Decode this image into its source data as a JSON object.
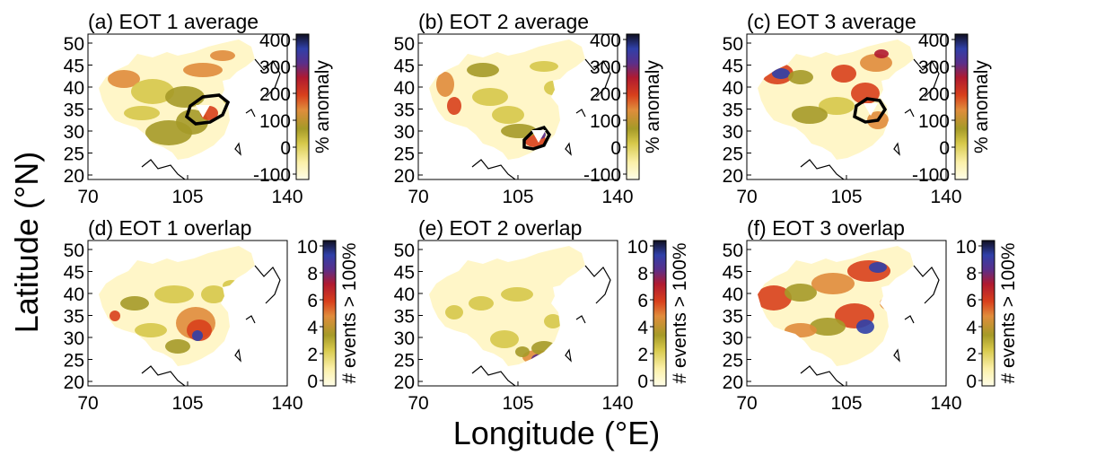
{
  "figure": {
    "ylabel": "Latitude (°N)",
    "xlabel": "Longitude (°E)"
  },
  "axes": {
    "lon_ticks": [
      "70",
      "105",
      "140"
    ],
    "lat_ticks": [
      "50",
      "45",
      "40",
      "35",
      "30",
      "25",
      "20"
    ]
  },
  "rows": [
    {
      "colorbar_label": "% anomaly",
      "colorbar_ticks": [
        "400",
        "300",
        "200",
        "100",
        "0",
        "-100"
      ],
      "panels": [
        {
          "title": "(a) EOT 1 average",
          "outline": true
        },
        {
          "title": "(b) EOT 2 average",
          "outline": true
        },
        {
          "title": "(c) EOT 3 average",
          "outline": true
        }
      ]
    },
    {
      "colorbar_label": "# events > 100%",
      "colorbar_ticks": [
        "10",
        "8",
        "6",
        "4",
        "2",
        "0"
      ],
      "panels": [
        {
          "title": "(d) EOT 1 overlap",
          "outline": false
        },
        {
          "title": "(e) EOT 2 overlap",
          "outline": false
        },
        {
          "title": "(f) EOT 3 overlap",
          "outline": false
        }
      ]
    }
  ],
  "colors": {
    "scale": [
      "#fffde8",
      "#fbf0a8",
      "#d6c84a",
      "#a59a28",
      "#e08c3c",
      "#d8401c",
      "#b01a30",
      "#5a2f8a",
      "#3040a8",
      "#101020"
    ],
    "land_base": "#fff6c8",
    "outline": "#000000",
    "marker": "#ffffff"
  }
}
